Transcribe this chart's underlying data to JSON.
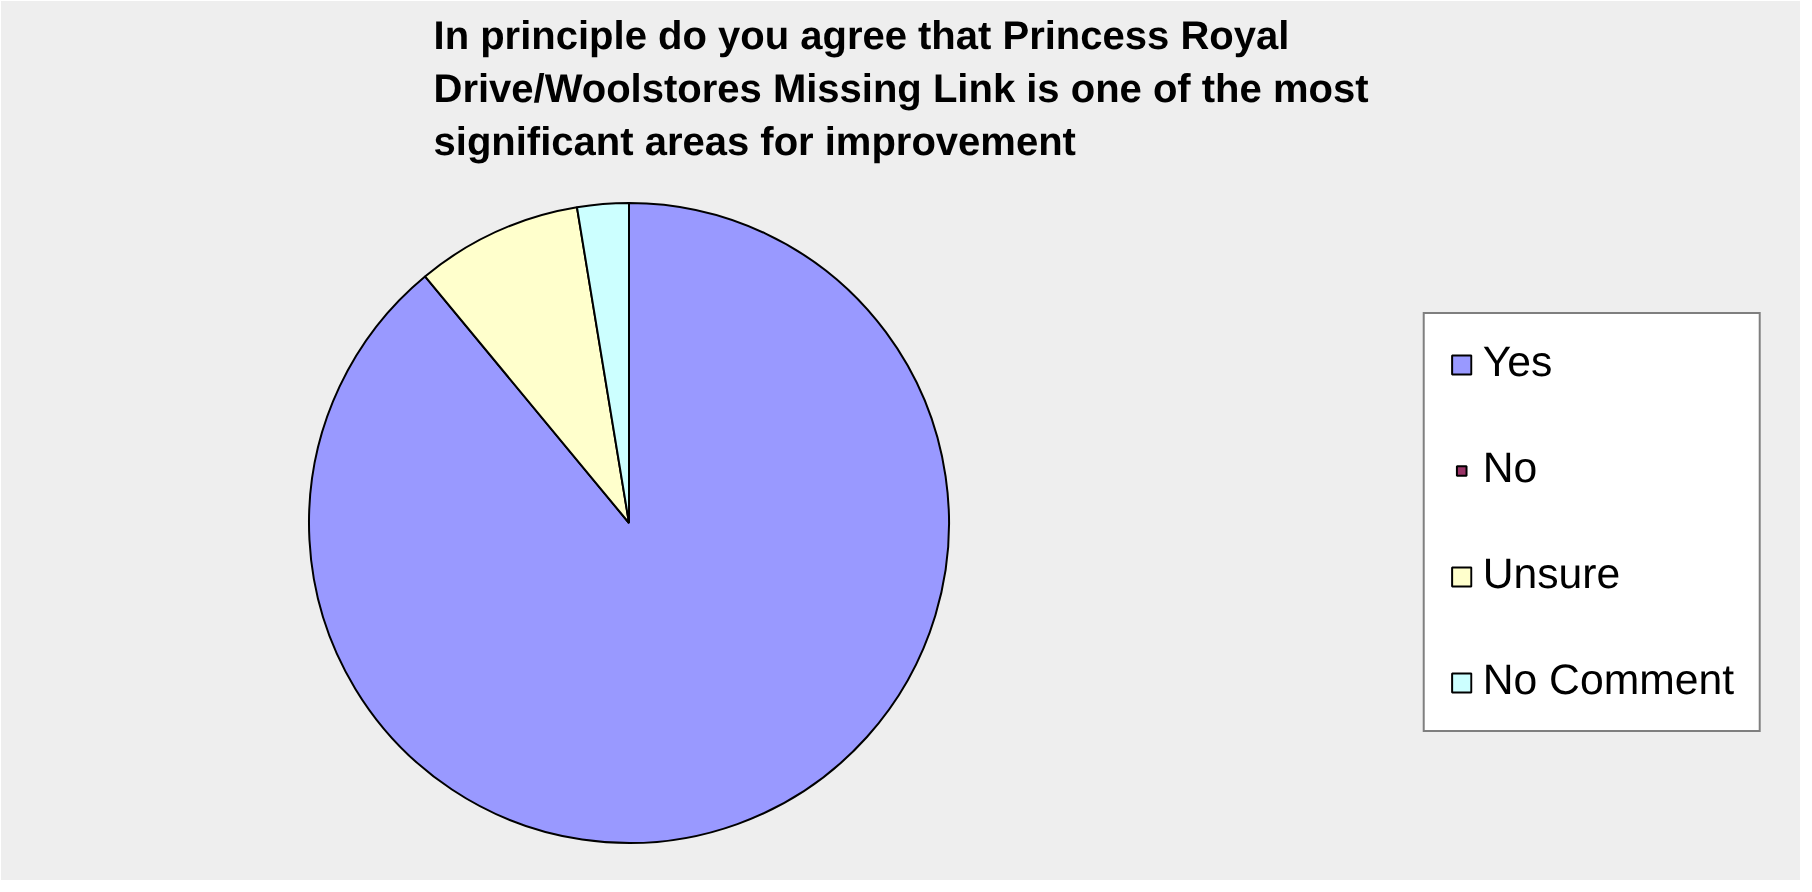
{
  "chart_data": {
    "type": "pie",
    "title": "In principle do you agree that Princess Royal Drive/Woolstores Missing Link is one of the most significant areas for improvement",
    "categories": [
      "Yes",
      "No",
      "Unsure",
      "No Comment"
    ],
    "values": [
      89,
      0,
      8.4,
      2.6
    ],
    "colors": [
      "#9999ff",
      "#993366",
      "#ffffcc",
      "#ccffff"
    ],
    "legend": "right"
  }
}
